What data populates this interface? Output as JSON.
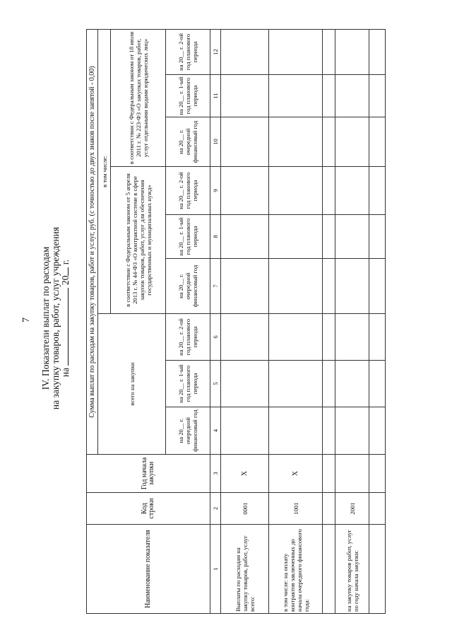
{
  "page_number": "7",
  "title": {
    "line1": "IV. Показатели выплат по расходам",
    "line2": "на закупку товаров, работ, услуг учреждения",
    "line3_prefix": "на",
    "line3_year": "20",
    "line3_suffix": "г."
  },
  "table": {
    "header": {
      "name": "Наименование показателя",
      "code": "Код строки",
      "year": "Год начала закупки",
      "sum": "Сумма выплат по расходам на закупку товаров, работ и услуг, руб. (с точностью до двух знаков после запятой - 0,00)",
      "total": "всего на закупки",
      "including": "в том числе:",
      "law44": "в соответствии с Федеральным законом от 5 апреля 2013 г. № 44-ФЗ «О контрактной системе в сфере закупок товаров, работ, услуг для обеспечения государственных и муниципальных нужд»",
      "law223": "в соответствии с Федеральным законом от 18 июля 2011 г. № 223-ФЗ «О закупках товаров, работ, услуг отдельными видами юридических лиц»",
      "periods": [
        "на 20__ г. очередной финансовый год",
        "на 20__ г. 1-ый год планового периода",
        "на 20__ г. 2-ой год планового периода",
        "на 20__ г. очередной финансовый год",
        "на 20__ г. 1-ый год планового периода",
        "на 20__ г. 2-ой год планового периода",
        "на 20__ г. очередной финансовый год",
        "на 20__ г. 1-ый год планового периода",
        "на 20__ г. 2-ой год планового периода"
      ],
      "numbers": [
        "1",
        "2",
        "3",
        "4",
        "5",
        "6",
        "7",
        "8",
        "9",
        "10",
        "11",
        "12"
      ]
    },
    "rows": [
      {
        "name": "Выплаты по расходам на закупку товаров, работ, услуг всего:",
        "code": "0001",
        "year": "X"
      },
      {
        "name": "в том числе: на оплату контрактов заключенных до начала очередного финансового года:",
        "code": "1001",
        "year": "X"
      },
      {
        "name": "",
        "code": "",
        "year": ""
      },
      {
        "name": "на закупку товаров работ, услуг по году начала закупки:",
        "code": "2001",
        "year": ""
      },
      {
        "name": "",
        "code": "",
        "year": ""
      }
    ]
  }
}
